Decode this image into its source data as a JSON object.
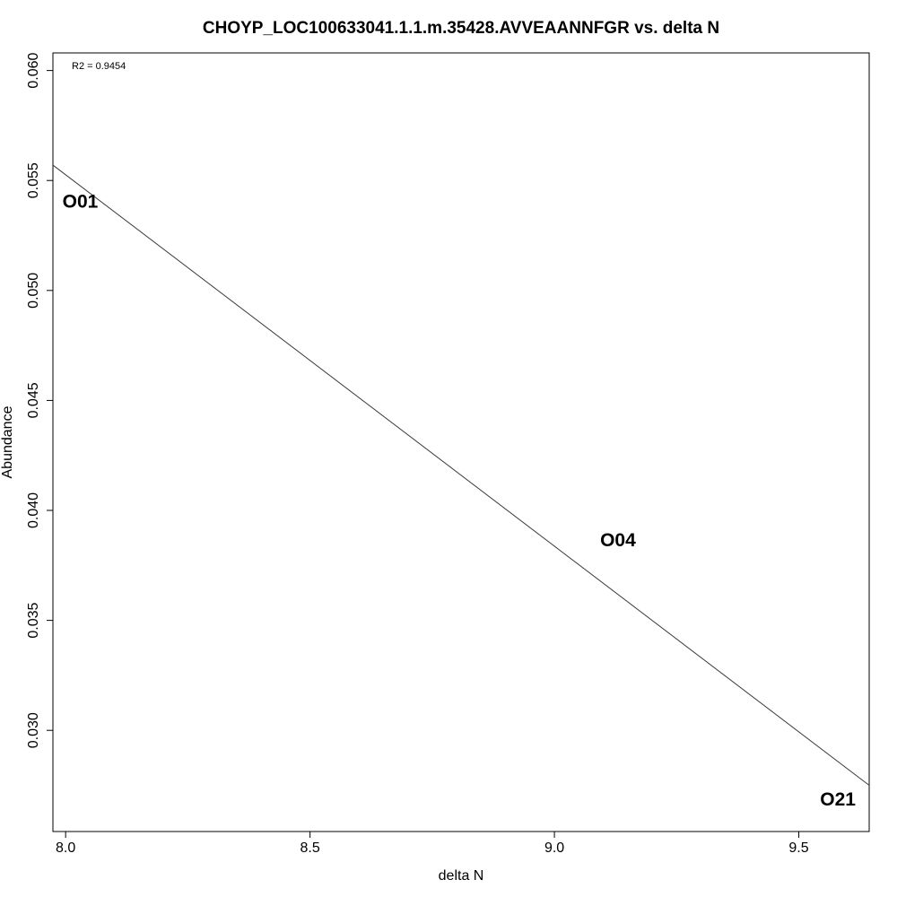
{
  "chart_data": {
    "type": "scatter",
    "title": "CHOYP_LOC100633041.1.1.m.35428.AVVEAANNFGR vs. delta N",
    "xlabel": "delta N",
    "ylabel": "Abundance",
    "xlim": [
      7.974,
      9.644
    ],
    "ylim": [
      0.0254,
      0.0608
    ],
    "x_ticks": [
      8.0,
      8.5,
      9.0,
      9.5
    ],
    "x_tick_labels": [
      "8.0",
      "8.5",
      "9.0",
      "9.5"
    ],
    "y_ticks": [
      0.03,
      0.035,
      0.04,
      0.045,
      0.05,
      0.055,
      0.06
    ],
    "y_tick_labels": [
      "0.030",
      "0.035",
      "0.040",
      "0.045",
      "0.050",
      "0.055",
      "0.060"
    ],
    "points": [
      {
        "label": "O01",
        "x": 8.03,
        "y": 0.054
      },
      {
        "label": "O04",
        "x": 9.13,
        "y": 0.0386
      },
      {
        "label": "O21",
        "x": 9.58,
        "y": 0.0268
      }
    ],
    "regression_line": {
      "x": [
        7.974,
        9.644
      ],
      "y": [
        0.0557,
        0.0275
      ]
    },
    "annotation": "R2 = 0.9454",
    "grid": false,
    "legend": "none"
  }
}
